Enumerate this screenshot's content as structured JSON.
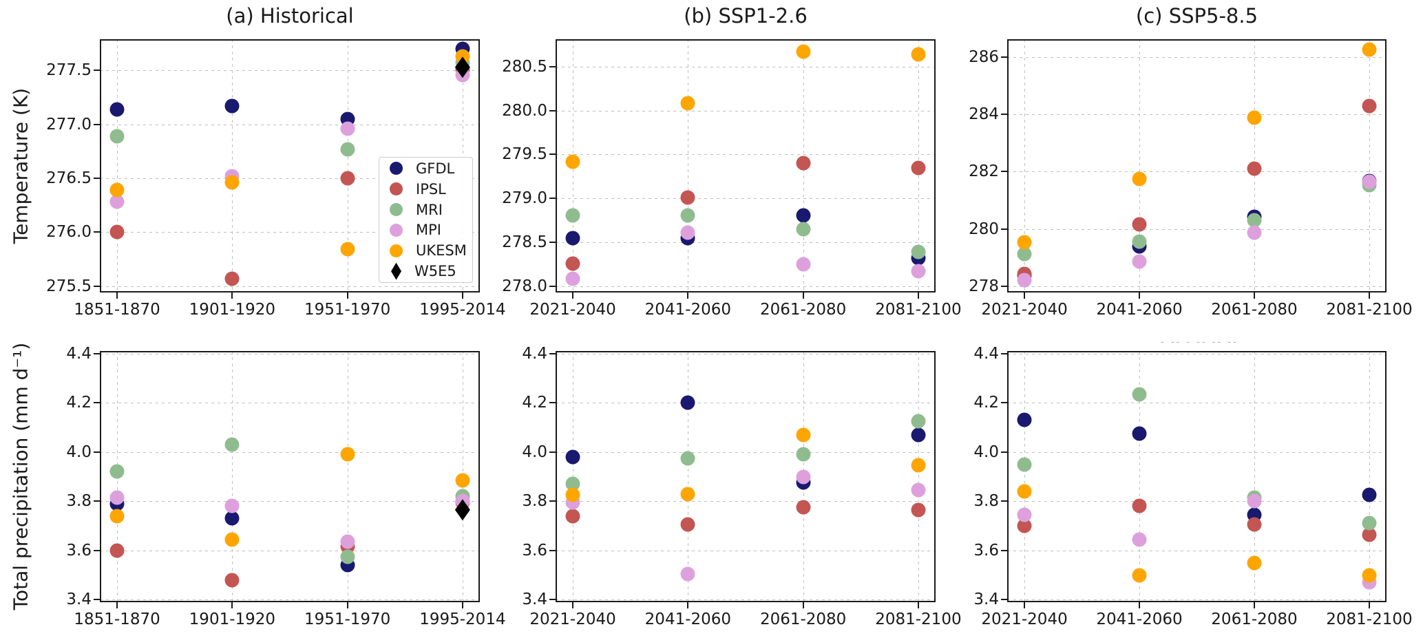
{
  "figure": {
    "background": "#ffffff"
  },
  "models": [
    {
      "name": "GFDL",
      "color": "#191970",
      "marker": "circle"
    },
    {
      "name": "IPSL",
      "color": "#c35553",
      "marker": "circle"
    },
    {
      "name": "MRI",
      "color": "#8fbc8f",
      "marker": "circle"
    },
    {
      "name": "MPI",
      "color": "#dda0dd",
      "marker": "circle"
    },
    {
      "name": "UKESM",
      "color": "#ffa500",
      "marker": "circle"
    },
    {
      "name": "W5E5",
      "color": "#000000",
      "marker": "diamond"
    }
  ],
  "legend": {
    "entries": [
      "GFDL",
      "IPSL",
      "MRI",
      "MPI",
      "UKESM",
      "W5E5"
    ]
  },
  "artifact_text": "‐ ‐‐ ‐  ‐‐ ‐‐ ‐‐",
  "chart_data": [
    {
      "id": "temp-historical",
      "type": "scatter",
      "title": "(a) Historical",
      "ylabel": "Temperature (K)",
      "categories": [
        "1851-1870",
        "1901-1920",
        "1951-1970",
        "1995-2014"
      ],
      "yticks": [
        "275.5",
        "276.0",
        "276.5",
        "277.0",
        "277.5"
      ],
      "ylim": [
        275.44,
        277.79
      ],
      "grid": true,
      "legend_position": "lower right",
      "series": [
        {
          "name": "GFDL",
          "values": [
            277.14,
            277.17,
            277.05,
            277.7
          ]
        },
        {
          "name": "IPSL",
          "values": [
            276.0,
            275.57,
            276.5,
            277.51
          ]
        },
        {
          "name": "MRI",
          "values": [
            276.89,
            null,
            276.77,
            277.57
          ]
        },
        {
          "name": "MPI",
          "values": [
            276.28,
            276.52,
            276.96,
            277.46
          ]
        },
        {
          "name": "UKESM",
          "values": [
            276.39,
            276.46,
            275.84,
            277.63
          ]
        },
        {
          "name": "W5E5",
          "values": [
            null,
            null,
            null,
            277.53
          ]
        }
      ]
    },
    {
      "id": "temp-ssp126",
      "type": "scatter",
      "title": "(b) SSP1-2.6",
      "ylabel": "",
      "categories": [
        "2021-2040",
        "2041-2060",
        "2061-2080",
        "2081-2100"
      ],
      "yticks": [
        "278.0",
        "278.5",
        "279.0",
        "279.5",
        "280.0",
        "280.5"
      ],
      "ylim": [
        277.93,
        280.81
      ],
      "grid": true,
      "series": [
        {
          "name": "GFDL",
          "values": [
            278.55,
            278.55,
            278.81,
            278.32
          ]
        },
        {
          "name": "IPSL",
          "values": [
            278.26,
            279.01,
            279.4,
            279.35
          ]
        },
        {
          "name": "MRI",
          "values": [
            278.81,
            278.81,
            278.65,
            278.39
          ]
        },
        {
          "name": "MPI",
          "values": [
            278.09,
            278.61,
            278.25,
            278.17
          ]
        },
        {
          "name": "UKESM",
          "values": [
            279.42,
            280.08,
            280.67,
            280.64
          ]
        }
      ]
    },
    {
      "id": "temp-ssp585",
      "type": "scatter",
      "title": "(c) SSP5-8.5",
      "ylabel": "",
      "categories": [
        "2021-2040",
        "2041-2060",
        "2061-2080",
        "2081-2100"
      ],
      "yticks": [
        "278",
        "280",
        "282",
        "284",
        "286"
      ],
      "ylim": [
        277.78,
        286.62
      ],
      "grid": true,
      "series": [
        {
          "name": "GFDL",
          "values": [
            278.38,
            279.4,
            280.42,
            281.68
          ]
        },
        {
          "name": "IPSL",
          "values": [
            278.43,
            280.16,
            282.11,
            284.3
          ]
        },
        {
          "name": "MRI",
          "values": [
            279.13,
            279.55,
            280.31,
            281.52
          ]
        },
        {
          "name": "MPI",
          "values": [
            278.21,
            278.85,
            279.88,
            281.65
          ]
        },
        {
          "name": "UKESM",
          "values": [
            279.53,
            281.75,
            283.87,
            286.25
          ]
        }
      ]
    },
    {
      "id": "precip-historical",
      "type": "scatter",
      "title": "",
      "ylabel": "Total precipitation (mm d⁻¹)",
      "categories": [
        "1851-1870",
        "1901-1920",
        "1951-1970",
        "1995-2014"
      ],
      "yticks": [
        "3.4",
        "3.6",
        "3.8",
        "4.0",
        "4.2",
        "4.4"
      ],
      "ylim": [
        3.39,
        4.41
      ],
      "grid": true,
      "series": [
        {
          "name": "GFDL",
          "values": [
            3.79,
            3.73,
            3.54,
            null
          ]
        },
        {
          "name": "IPSL",
          "values": [
            3.6,
            3.48,
            3.615,
            3.795
          ]
        },
        {
          "name": "MRI",
          "values": [
            3.92,
            4.03,
            3.575,
            3.82
          ]
        },
        {
          "name": "MPI",
          "values": [
            3.815,
            3.78,
            3.635,
            3.8
          ]
        },
        {
          "name": "UKESM",
          "values": [
            3.74,
            3.645,
            3.99,
            3.885
          ]
        },
        {
          "name": "W5E5",
          "values": [
            null,
            null,
            null,
            3.765
          ]
        }
      ]
    },
    {
      "id": "precip-ssp126",
      "type": "scatter",
      "title": "",
      "ylabel": "",
      "categories": [
        "2021-2040",
        "2041-2060",
        "2061-2080",
        "2081-2100"
      ],
      "yticks": [
        "3.4",
        "3.6",
        "3.8",
        "4.0",
        "4.2",
        "4.4"
      ],
      "ylim": [
        3.39,
        4.41
      ],
      "grid": true,
      "series": [
        {
          "name": "GFDL",
          "values": [
            3.98,
            4.2,
            3.875,
            4.07
          ]
        },
        {
          "name": "IPSL",
          "values": [
            3.74,
            3.705,
            3.775,
            3.765
          ]
        },
        {
          "name": "MRI",
          "values": [
            3.87,
            3.975,
            3.99,
            4.125
          ]
        },
        {
          "name": "MPI",
          "values": [
            3.795,
            3.505,
            3.9,
            3.845
          ]
        },
        {
          "name": "UKESM",
          "values": [
            3.825,
            3.83,
            4.07,
            3.945
          ]
        }
      ]
    },
    {
      "id": "precip-ssp585",
      "type": "scatter",
      "title": "",
      "ylabel": "",
      "categories": [
        "2021-2040",
        "2041-2060",
        "2061-2080",
        "2081-2100"
      ],
      "yticks": [
        "3.4",
        "3.6",
        "3.8",
        "4.0",
        "4.2",
        "4.4"
      ],
      "ylim": [
        3.39,
        4.41
      ],
      "grid": true,
      "series": [
        {
          "name": "GFDL",
          "values": [
            4.13,
            4.075,
            3.745,
            3.825
          ]
        },
        {
          "name": "IPSL",
          "values": [
            3.7,
            3.78,
            3.705,
            3.665
          ]
        },
        {
          "name": "MRI",
          "values": [
            3.95,
            4.235,
            3.815,
            3.71
          ]
        },
        {
          "name": "MPI",
          "values": [
            3.745,
            3.645,
            3.8,
            3.47
          ]
        },
        {
          "name": "UKESM",
          "values": [
            3.84,
            3.5,
            3.55,
            3.5
          ]
        }
      ]
    }
  ]
}
